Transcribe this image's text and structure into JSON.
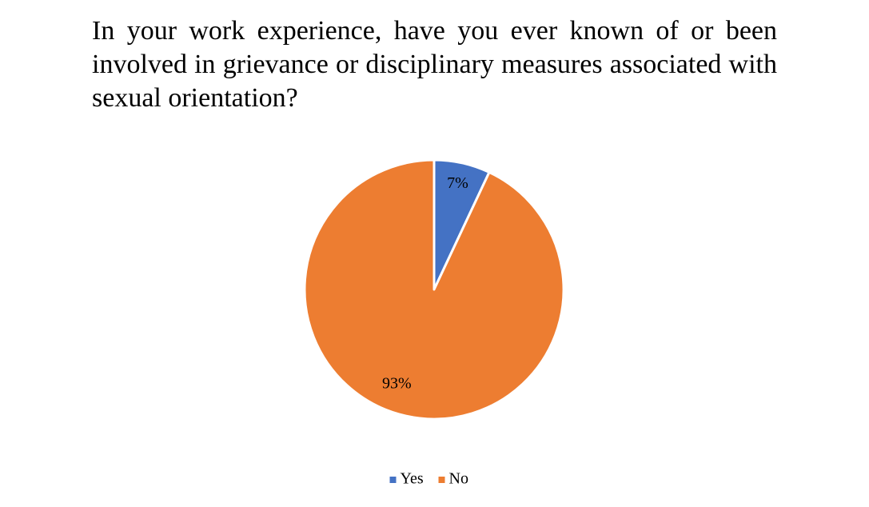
{
  "chart_data": {
    "type": "pie",
    "title": "In your work experience, have you ever known of or been involved in grievance or disciplinary measures associated with sexual orientation?",
    "categories": [
      "Yes",
      "No"
    ],
    "values": [
      7,
      93
    ],
    "value_labels": [
      "7%",
      "93%"
    ],
    "colors": [
      "#4472c4",
      "#ed7d31"
    ],
    "legend": "bottom"
  }
}
